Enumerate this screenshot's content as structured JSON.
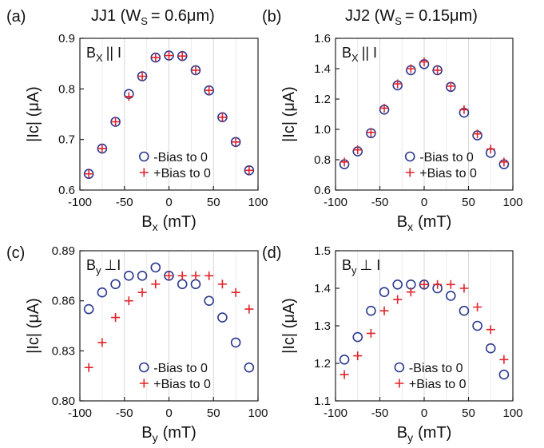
{
  "figure": {
    "column_titles": [
      "JJ1 (W",
      "JJ2 (W"
    ],
    "column_title_sub": "S",
    "column_title_suffix": [
      "= 0.6μm)",
      "= 0.15μm)"
    ]
  },
  "colors": {
    "circle": "#2b3a8f",
    "plus": "#e0242b",
    "axis": "#222222",
    "grid": "#d8d8d8"
  },
  "chart_data": [
    {
      "type": "scatter",
      "panel_label": "(a)",
      "inner_label": {
        "main": "B",
        "sub": "X",
        "rest": "|| I"
      },
      "xlabel": {
        "main": "B",
        "sub": "x",
        "rest": "(mT)"
      },
      "ylabel": "|Ic| (μA)",
      "xlim": [
        -100,
        100
      ],
      "ylim": [
        0.6,
        0.9
      ],
      "xticks": [
        -100,
        -50,
        0,
        50,
        100
      ],
      "xtick_labels": [
        "-100",
        "-50",
        "0",
        "50",
        "100"
      ],
      "yticks": [
        0.6,
        0.7,
        0.8,
        0.9
      ],
      "ytick_labels": [
        "0.6",
        "0.7",
        "0.8",
        "0.9"
      ],
      "x": [
        -90,
        -75,
        -60,
        -45,
        -30,
        -15,
        0,
        15,
        30,
        45,
        60,
        75,
        90
      ],
      "series": [
        {
          "name": "-Bias to 0",
          "marker": "circle",
          "values": [
            0.632,
            0.682,
            0.735,
            0.79,
            0.825,
            0.862,
            0.866,
            0.865,
            0.837,
            0.797,
            0.744,
            0.695,
            0.639
          ]
        },
        {
          "name": "+Bias to 0",
          "marker": "plus",
          "values": [
            0.632,
            0.682,
            0.735,
            0.785,
            0.825,
            0.862,
            0.866,
            0.865,
            0.837,
            0.797,
            0.744,
            0.695,
            0.639
          ]
        }
      ],
      "legend": "bottom-center"
    },
    {
      "type": "scatter",
      "panel_label": "(b)",
      "inner_label": {
        "main": "B",
        "sub": "X",
        "rest": "|| I"
      },
      "xlabel": {
        "main": "B",
        "sub": "x",
        "rest": "(mT)"
      },
      "ylabel": "|Ic| (μA)",
      "xlim": [
        -100,
        100
      ],
      "ylim": [
        0.6,
        1.6
      ],
      "xticks": [
        -100,
        -50,
        0,
        50,
        100
      ],
      "xtick_labels": [
        "-100",
        "-50",
        "0",
        "50",
        "100"
      ],
      "yticks": [
        0.6,
        0.8,
        1.0,
        1.2,
        1.4,
        1.6
      ],
      "ytick_labels": [
        "0.6",
        "0.8",
        "1.0",
        "1.2",
        "1.4",
        "1.6"
      ],
      "x": [
        -90,
        -75,
        -60,
        -45,
        -30,
        -15,
        0,
        15,
        30,
        45,
        60,
        75,
        90
      ],
      "series": [
        {
          "name": "-Bias to 0",
          "marker": "circle",
          "values": [
            0.77,
            0.855,
            0.975,
            1.13,
            1.29,
            1.39,
            1.43,
            1.39,
            1.28,
            1.11,
            0.96,
            0.845,
            0.77
          ]
        },
        {
          "name": "+Bias to 0",
          "marker": "plus",
          "values": [
            0.785,
            0.865,
            0.98,
            1.14,
            1.3,
            1.4,
            1.445,
            1.39,
            1.285,
            1.13,
            0.97,
            0.87,
            0.785
          ]
        }
      ],
      "legend": "bottom-right"
    },
    {
      "type": "scatter",
      "panel_label": "(c)",
      "inner_label": {
        "main": "B",
        "sub": "y",
        "rest": "⊥I"
      },
      "xlabel": {
        "main": "B",
        "sub": "y",
        "rest": "(mT)"
      },
      "ylabel": "|Ic| (μA)",
      "xlim": [
        -100,
        100
      ],
      "ylim": [
        0.8,
        0.89
      ],
      "xticks": [
        -100,
        -50,
        0,
        50,
        100
      ],
      "xtick_labels": [
        "-100",
        "-50",
        "0",
        "50",
        "100"
      ],
      "yticks": [
        0.8,
        0.83,
        0.86,
        0.89
      ],
      "ytick_labels": [
        "0.80",
        "0.83",
        "0.86",
        "0.89"
      ],
      "x": [
        -90,
        -75,
        -60,
        -45,
        -30,
        -15,
        0,
        15,
        30,
        45,
        60,
        75,
        90
      ],
      "series": [
        {
          "name": "-Bias to 0",
          "marker": "circle",
          "values": [
            0.855,
            0.865,
            0.87,
            0.875,
            0.875,
            0.88,
            0.875,
            0.87,
            0.87,
            0.86,
            0.85,
            0.835,
            0.82
          ]
        },
        {
          "name": "+Bias to 0",
          "marker": "plus",
          "values": [
            0.82,
            0.835,
            0.85,
            0.86,
            0.865,
            0.87,
            0.875,
            0.875,
            0.875,
            0.875,
            0.87,
            0.865,
            0.855
          ]
        }
      ],
      "legend": "bottom-center"
    },
    {
      "type": "scatter",
      "panel_label": "(d)",
      "inner_label": {
        "main": "B",
        "sub": "y",
        "rest": "⊥ I"
      },
      "xlabel": {
        "main": "B",
        "sub": "y",
        "rest": "(mT)"
      },
      "ylabel": "|Ic| (μA)",
      "xlim": [
        -100,
        100
      ],
      "ylim": [
        1.1,
        1.5
      ],
      "xticks": [
        -100,
        -50,
        0,
        50,
        100
      ],
      "xtick_labels": [
        "-100",
        "-50",
        "0",
        "50",
        "100"
      ],
      "yticks": [
        1.1,
        1.2,
        1.3,
        1.4,
        1.5
      ],
      "ytick_labels": [
        "1.1",
        "1.2",
        "1.3",
        "1.4",
        "1.5"
      ],
      "x": [
        -90,
        -75,
        -60,
        -45,
        -30,
        -15,
        0,
        15,
        30,
        45,
        60,
        75,
        90
      ],
      "series": [
        {
          "name": "-Bias to 0",
          "marker": "circle",
          "values": [
            1.21,
            1.27,
            1.34,
            1.39,
            1.41,
            1.41,
            1.41,
            1.4,
            1.38,
            1.34,
            1.3,
            1.24,
            1.17
          ]
        },
        {
          "name": "+Bias to 0",
          "marker": "plus",
          "values": [
            1.17,
            1.22,
            1.28,
            1.34,
            1.37,
            1.39,
            1.41,
            1.41,
            1.41,
            1.4,
            1.35,
            1.29,
            1.21
          ]
        }
      ],
      "legend": "bottom-center"
    }
  ]
}
